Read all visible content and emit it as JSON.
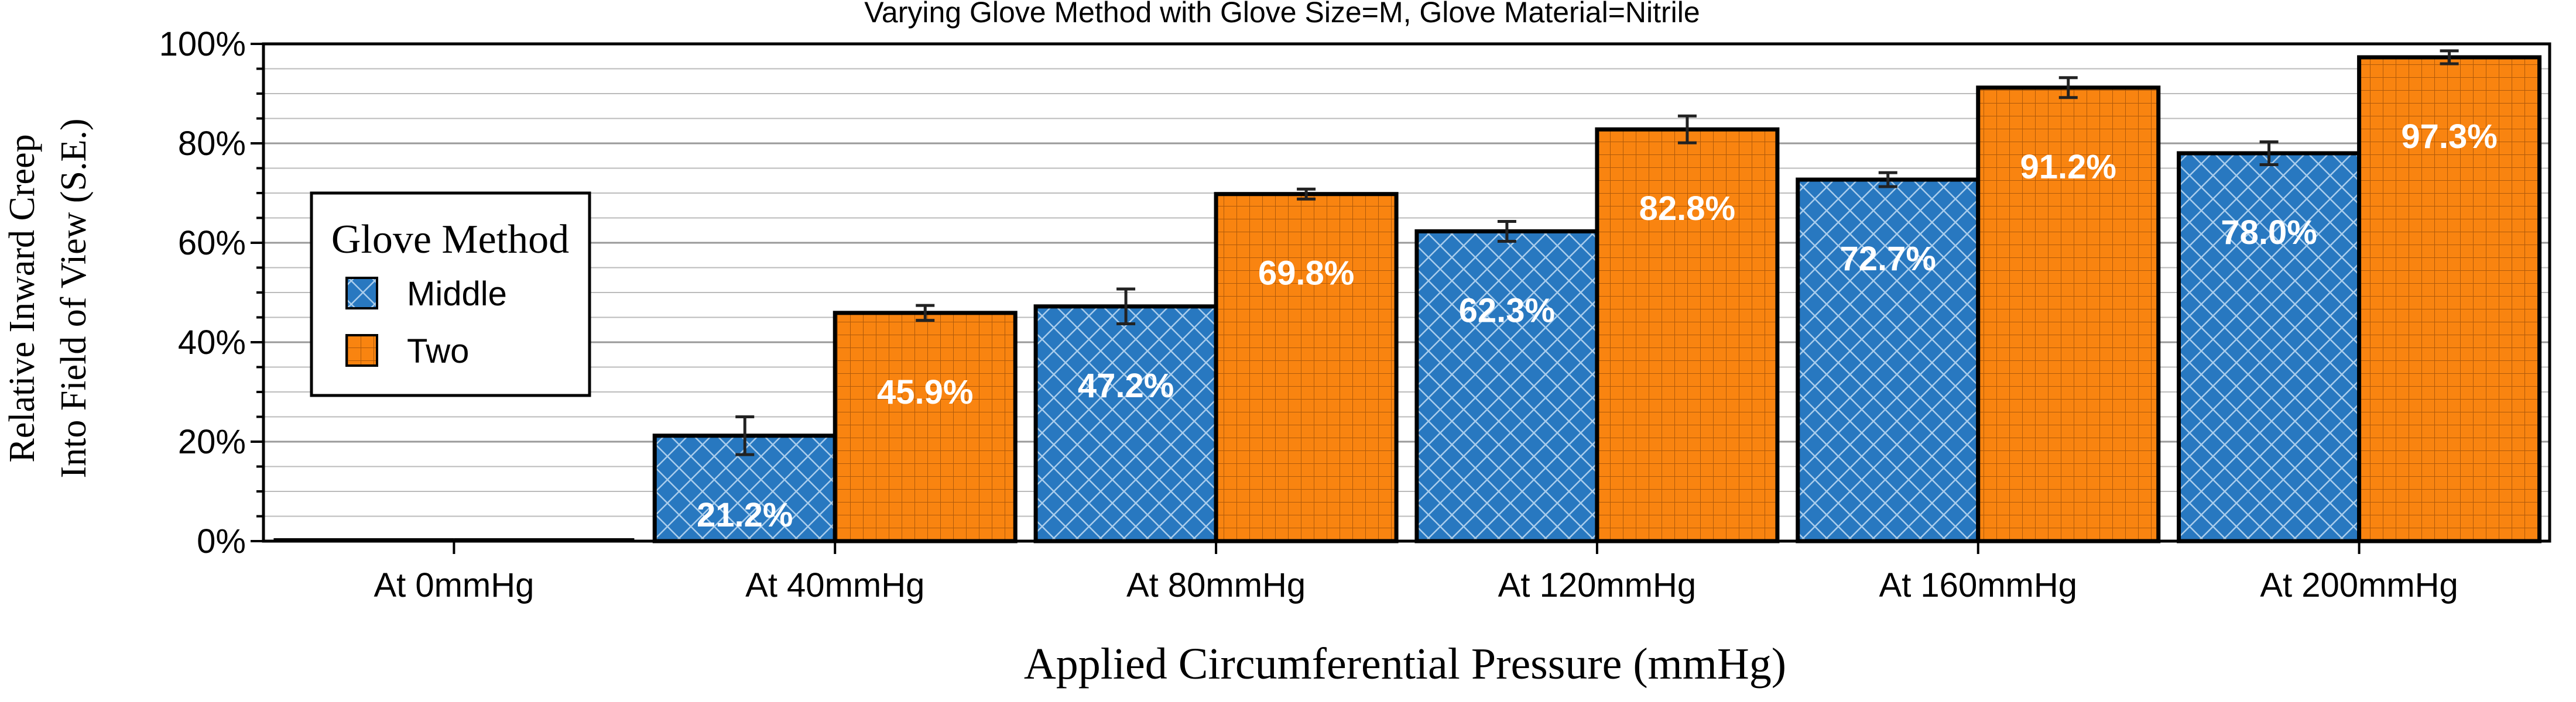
{
  "chart_data": {
    "type": "bar",
    "title": "Varying Glove Method with Glove Size=M, Glove Material=Nitrile",
    "xlabel": "Applied Circumferential Pressure (mmHg)",
    "ylabel_lines": [
      "Relative Inward Creep",
      "Into Field of View (S.E.)"
    ],
    "ylim": [
      0,
      1
    ],
    "yticks": [
      0,
      0.2,
      0.4,
      0.6,
      0.8,
      1.0
    ],
    "ytick_labels": [
      "0%",
      "20%",
      "40%",
      "60%",
      "80%",
      "100%"
    ],
    "grid": true,
    "legend": {
      "title": "Glove Method",
      "placement": "left"
    },
    "categories": [
      "At 0mmHg",
      "At 40mmHg",
      "At 80mmHg",
      "At 120mmHg",
      "At 160mmHg",
      "At 200mmHg"
    ],
    "series": [
      {
        "name": "Middle",
        "color": "#2878c0",
        "hatch": "crosshatch-diagonal",
        "values": [
          0,
          0.212,
          0.472,
          0.623,
          0.727,
          0.78
        ],
        "errors": [
          0,
          0.038,
          0.035,
          0.02,
          0.014,
          0.023
        ],
        "labels": [
          "",
          "21.2%",
          "47.2%",
          "62.3%",
          "72.7%",
          "78.0%"
        ]
      },
      {
        "name": "Two",
        "color": "#f98410",
        "hatch": "grid",
        "values": [
          0,
          0.459,
          0.698,
          0.828,
          0.912,
          0.973
        ],
        "errors": [
          0,
          0.015,
          0.01,
          0.027,
          0.02,
          0.013
        ],
        "labels": [
          "",
          "45.9%",
          "69.8%",
          "82.8%",
          "91.2%",
          "97.3%"
        ]
      }
    ]
  }
}
